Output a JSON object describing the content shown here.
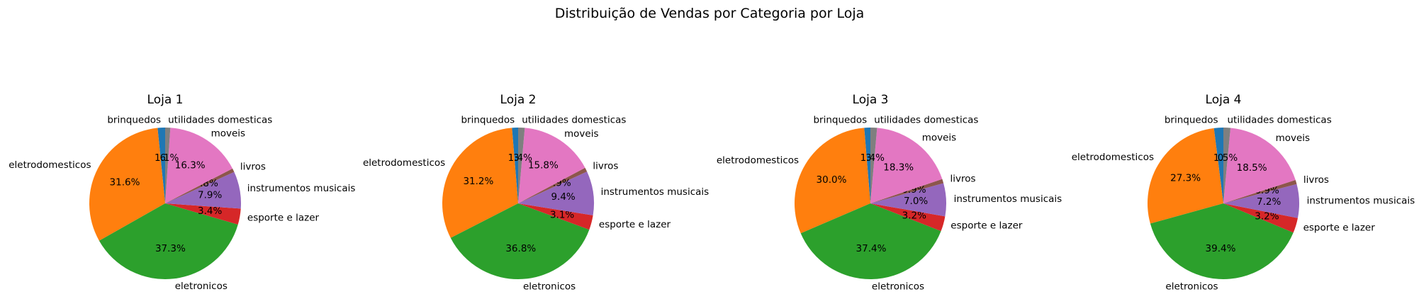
{
  "suptitle": "Distribuição de Vendas por Categoria por Loja",
  "colors": {
    "brinquedos": "#1f77b4",
    "eletrodomesticos": "#ff7f0e",
    "eletronicos": "#2ca02c",
    "esporte e lazer": "#d62728",
    "instrumentos musicais": "#9467bd",
    "livros": "#8c564b",
    "moveis": "#e377c2",
    "utilidades domesticas": "#7f7f7f"
  },
  "chart_data": [
    {
      "type": "pie",
      "title": "Loja 1",
      "categories": [
        "brinquedos",
        "eletrodomesticos",
        "eletronicos",
        "esporte e lazer",
        "instrumentos musicais",
        "livros",
        "moveis",
        "utilidades domesticas"
      ],
      "values": [
        1.6,
        31.6,
        37.3,
        3.4,
        7.9,
        0.8,
        16.3,
        1.1
      ],
      "value_labels": [
        "1.6%",
        "31.6%",
        "37.3%",
        "3.4%",
        "7.9%",
        "0.8%",
        "16.3%",
        "1.1%"
      ]
    },
    {
      "type": "pie",
      "title": "Loja 2",
      "categories": [
        "brinquedos",
        "eletrodomesticos",
        "eletronicos",
        "esporte e lazer",
        "instrumentos musicais",
        "livros",
        "moveis",
        "utilidades domesticas"
      ],
      "values": [
        1.3,
        31.2,
        36.8,
        3.1,
        9.4,
        0.9,
        15.8,
        1.4
      ],
      "value_labels": [
        "1.3%",
        "31.2%",
        "36.8%",
        "3.1%",
        "9.4%",
        "0.9%",
        "15.8%",
        "1.4%"
      ]
    },
    {
      "type": "pie",
      "title": "Loja 3",
      "categories": [
        "brinquedos",
        "eletrodomesticos",
        "eletronicos",
        "esporte e lazer",
        "instrumentos musicais",
        "livros",
        "moveis",
        "utilidades domesticas"
      ],
      "values": [
        1.3,
        30.0,
        37.4,
        3.2,
        7.0,
        0.9,
        18.3,
        1.4
      ],
      "value_labels": [
        "1.3%",
        "30.0%",
        "37.4%",
        "3.2%",
        "7.0%",
        "0.9%",
        "18.3%",
        "1.4%"
      ]
    },
    {
      "type": "pie",
      "title": "Loja 4",
      "categories": [
        "brinquedos",
        "eletrodomesticos",
        "eletronicos",
        "esporte e lazer",
        "instrumentos musicais",
        "livros",
        "moveis",
        "utilidades domesticas"
      ],
      "values": [
        2.0,
        27.3,
        39.4,
        3.2,
        7.2,
        0.9,
        18.5,
        1.5
      ],
      "value_labels": [
        "2.0%",
        "27.3%",
        "39.4%",
        "3.2%",
        "7.2%",
        "0.9%",
        "18.5%",
        "1.5%"
      ]
    }
  ]
}
